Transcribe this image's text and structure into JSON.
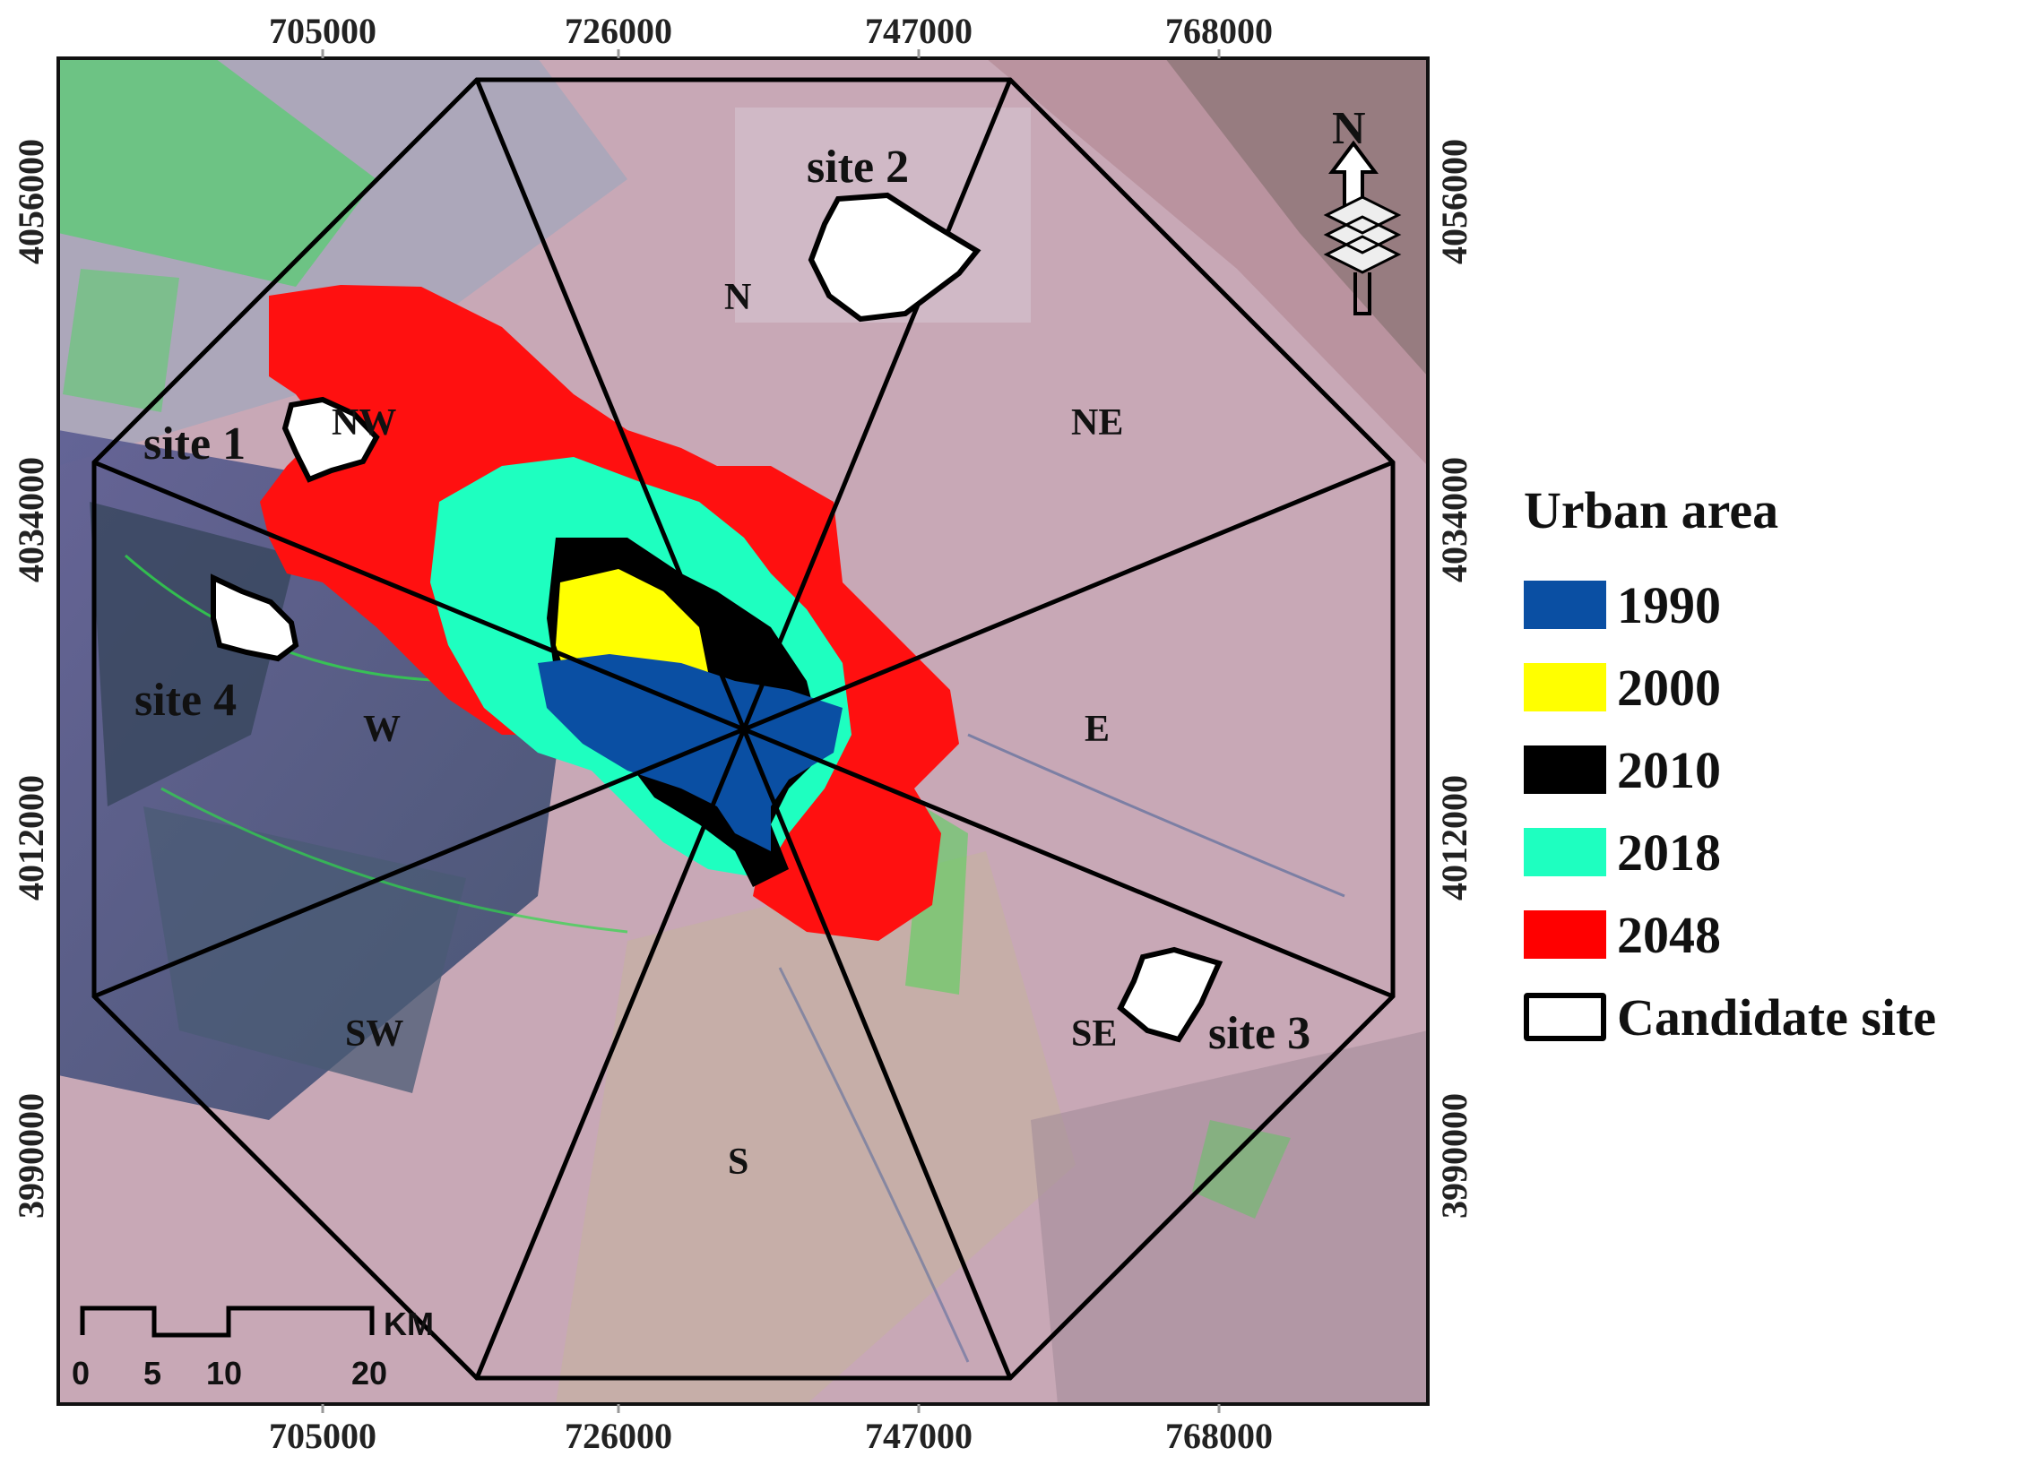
{
  "map": {
    "x_ticks": [
      "705000",
      "726000",
      "747000",
      "768000"
    ],
    "y_ticks": [
      "4056000",
      "4034000",
      "4012000",
      "3990000"
    ],
    "sectors": [
      "N",
      "NE",
      "E",
      "SE",
      "S",
      "SW",
      "W",
      "NW"
    ],
    "sites": [
      "site 1",
      "site 2",
      "site 3",
      "site 4"
    ],
    "north_arrow_label": "N",
    "scale_bar": {
      "unit": "KM",
      "labels": [
        "0",
        "5",
        "10",
        "20"
      ]
    }
  },
  "legend": {
    "title": "Urban area",
    "items": [
      {
        "label": "1990",
        "color": "#0a4fa3"
      },
      {
        "label": "2000",
        "color": "#ffff00"
      },
      {
        "label": "2010",
        "color": "#000000"
      },
      {
        "label": "2018",
        "color": "#1effc0"
      },
      {
        "label": "2048",
        "color": "#ff0000"
      }
    ],
    "candidate_label": "Candidate site"
  }
}
